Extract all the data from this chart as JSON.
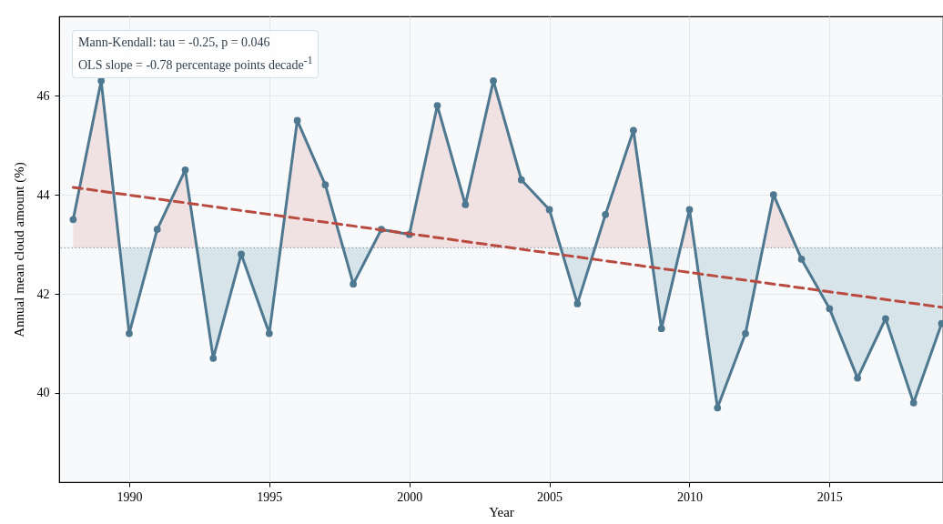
{
  "chart_data": {
    "type": "line",
    "xlabel": "Year",
    "ylabel": "Annual mean cloud amount (%)",
    "x": [
      1988,
      1989,
      1990,
      1991,
      1992,
      1993,
      1994,
      1995,
      1996,
      1997,
      1998,
      1999,
      2000,
      2001,
      2002,
      2003,
      2004,
      2005,
      2006,
      2007,
      2008,
      2009,
      2010,
      2011,
      2012,
      2013,
      2014,
      2015,
      2016,
      2017,
      2018,
      2019
    ],
    "series": [
      {
        "type": "area",
        "color": "#f0e1e2",
        "x": [
          1988,
          1988,
          1989,
          1989.66,
          1990,
          1990.82,
          1991,
          1992,
          1992.41,
          1993,
          1994,
          1995,
          1995.4,
          1996,
          1997,
          1997.64,
          1998,
          1998.66,
          1999,
          2000,
          2001,
          2002,
          2003,
          2004,
          2005,
          2005.41,
          2006,
          2006.63,
          2007,
          2008,
          2008.59,
          2009,
          2009.68,
          2010,
          2010.19,
          2011,
          2012,
          2012.62,
          2013,
          2013.82,
          2014,
          2015,
          2016,
          2017,
          2018,
          2019
        ],
        "values": [
          42.93,
          43.5,
          46.3,
          42.93,
          42.93,
          42.93,
          43.3,
          44.5,
          42.93,
          42.93,
          42.93,
          42.93,
          42.93,
          45.5,
          44.2,
          42.93,
          42.93,
          42.93,
          43.3,
          43.2,
          45.8,
          43.8,
          46.3,
          44.3,
          43.7,
          42.93,
          42.93,
          42.93,
          43.6,
          45.3,
          42.93,
          42.93,
          42.93,
          43.7,
          42.93,
          42.93,
          42.93,
          42.93,
          44.0,
          42.93,
          42.93,
          42.93,
          42.93,
          42.93,
          42.93,
          42.93
        ]
      },
      {
        "type": "area",
        "color": "#d7e5eb",
        "x": [
          1988,
          1989,
          1989.66,
          1990,
          1990.82,
          1991,
          1992,
          1992.41,
          1993,
          1994,
          1995,
          1995.4,
          1996,
          1997,
          1997.64,
          1998,
          1998.66,
          1999,
          2000,
          2001,
          2002,
          2003,
          2004,
          2005,
          2005.41,
          2006,
          2006.63,
          2007,
          2008,
          2008.59,
          2009,
          2009.68,
          2010,
          2010.19,
          2011,
          2012,
          2012.62,
          2013,
          2013.82,
          2014,
          2015,
          2016,
          2017,
          2018,
          2019,
          2019
        ],
        "values": [
          42.93,
          42.93,
          42.93,
          41.2,
          42.93,
          42.93,
          42.93,
          42.93,
          40.7,
          42.8,
          41.2,
          42.93,
          42.93,
          42.93,
          42.93,
          42.2,
          42.93,
          42.93,
          42.93,
          42.93,
          42.93,
          42.93,
          42.93,
          42.93,
          42.93,
          41.8,
          42.93,
          42.93,
          42.93,
          42.93,
          41.3,
          42.93,
          42.93,
          42.93,
          39.7,
          41.2,
          42.93,
          42.93,
          42.93,
          42.7,
          41.7,
          40.3,
          41.5,
          39.8,
          41.4,
          42.93
        ]
      },
      {
        "color": "#4e7890",
        "marker": "circle",
        "line_style": "solid",
        "values": [
          43.5,
          46.3,
          41.2,
          43.3,
          44.5,
          40.7,
          42.8,
          41.2,
          45.5,
          44.2,
          42.2,
          43.3,
          43.2,
          45.8,
          43.8,
          46.3,
          44.3,
          43.7,
          41.8,
          43.6,
          45.3,
          41.3,
          43.7,
          39.7,
          41.2,
          44.0,
          42.7,
          41.7,
          40.3,
          41.5,
          39.8,
          41.4
        ]
      },
      {
        "type": "line",
        "color": "#b84a40",
        "marker": "none",
        "line_style": "dashed",
        "x": [
          1988,
          2019
        ],
        "values": [
          44.15,
          41.73
        ]
      }
    ],
    "ref_lines": [
      {
        "axis": "y",
        "value": 42.93,
        "label": null,
        "color": "#7f8c96",
        "line_style": "dotted"
      }
    ],
    "annotations": [
      "Mann-Kendall: tau = -0.25, p = 0.046",
      "OLS slope = -0.78 percentage points decade$^{-1}$"
    ],
    "xlim": [
      1987.5,
      2019.05
    ],
    "xticks": [
      1990,
      1995,
      2000,
      2005,
      2010,
      2015
    ],
    "ylim": [
      38.2,
      47.6
    ],
    "yticks": [
      40,
      42,
      44,
      46
    ],
    "grid": true
  }
}
